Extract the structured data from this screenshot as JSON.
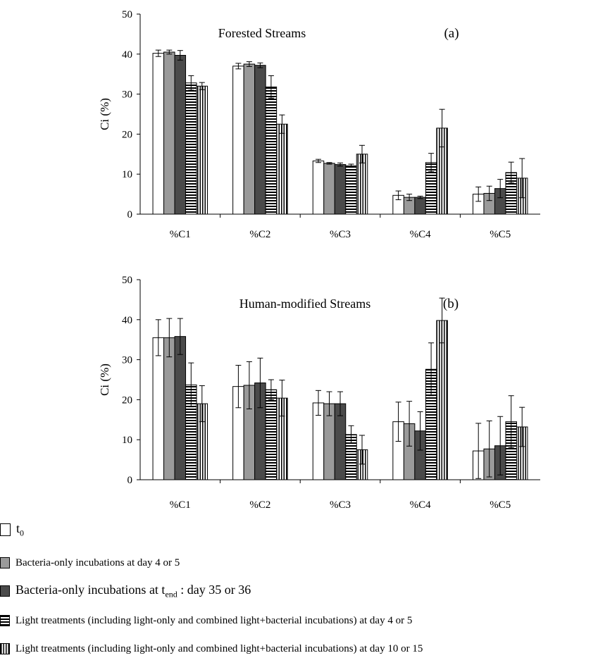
{
  "chart_data": [
    {
      "type": "bar",
      "title": "Forested Streams",
      "panel_label": "(a)",
      "ylabel": "Ci (%)",
      "ylim": [
        0,
        50
      ],
      "yticks": [
        0,
        10,
        20,
        30,
        40,
        50
      ],
      "categories": [
        "%C1",
        "%C2",
        "%C3",
        "%C4",
        "%C5"
      ],
      "series": [
        {
          "key": "t0",
          "values": [
            40.2,
            37.0,
            13.3,
            4.7,
            5.0
          ],
          "errors": [
            0.8,
            0.7,
            0.4,
            1.1,
            1.8
          ]
        },
        {
          "key": "bact_day4_5",
          "values": [
            40.5,
            37.5,
            12.7,
            4.2,
            5.2
          ],
          "errors": [
            0.5,
            0.6,
            0.2,
            0.8,
            1.8
          ]
        },
        {
          "key": "bact_tend",
          "values": [
            39.7,
            37.2,
            12.4,
            4.2,
            6.4
          ],
          "errors": [
            1.2,
            0.6,
            0.4,
            0.3,
            2.3
          ]
        },
        {
          "key": "light_day4_5",
          "values": [
            32.8,
            31.8,
            12.1,
            12.9,
            10.4
          ],
          "errors": [
            1.8,
            2.8,
            0.4,
            2.3,
            2.6
          ]
        },
        {
          "key": "light_day10_15",
          "values": [
            32.0,
            22.5,
            15.0,
            21.5,
            9.0
          ],
          "errors": [
            0.9,
            2.3,
            2.2,
            4.7,
            4.9
          ]
        }
      ]
    },
    {
      "type": "bar",
      "title": "Human-modified Streams",
      "panel_label": "(b)",
      "ylabel": "Ci (%)",
      "ylim": [
        0,
        50
      ],
      "yticks": [
        0,
        10,
        20,
        30,
        40,
        50
      ],
      "categories": [
        "%C1",
        "%C2",
        "%C3",
        "%C4",
        "%C5"
      ],
      "series": [
        {
          "key": "t0",
          "values": [
            35.5,
            23.3,
            19.2,
            14.5,
            7.2
          ],
          "errors": [
            4.5,
            5.3,
            3.1,
            4.9,
            6.9
          ]
        },
        {
          "key": "bact_day4_5",
          "values": [
            35.5,
            23.6,
            19.0,
            14.0,
            7.7
          ],
          "errors": [
            4.8,
            5.9,
            3.0,
            5.6,
            7.0
          ]
        },
        {
          "key": "bact_tend",
          "values": [
            35.8,
            24.2,
            19.0,
            12.2,
            8.5
          ],
          "errors": [
            4.5,
            6.2,
            3.0,
            4.8,
            7.3
          ]
        },
        {
          "key": "light_day4_5",
          "values": [
            23.7,
            22.5,
            11.3,
            27.6,
            14.5
          ],
          "errors": [
            5.5,
            2.5,
            2.2,
            6.6,
            6.5
          ]
        },
        {
          "key": "light_day10_15",
          "values": [
            19.0,
            20.4,
            7.5,
            39.8,
            13.2
          ],
          "errors": [
            4.5,
            4.5,
            3.6,
            5.6,
            4.9
          ]
        }
      ]
    }
  ],
  "legend": [
    {
      "key": "t0",
      "text": "t",
      "sub": "0",
      "after": ""
    },
    {
      "key": "bact_day4_5",
      "text": "Bacteria-only incubations at day 4 or 5",
      "sub": "",
      "after": ""
    },
    {
      "key": "bact_tend",
      "text": "Bacteria-only incubations at t",
      "sub": "end",
      "after": " : day 35 or 36"
    },
    {
      "key": "light_day4_5",
      "text": "Light treatments (including light-only and combined light+bacterial incubations)  at day 4 or 5",
      "sub": "",
      "after": ""
    },
    {
      "key": "light_day10_15",
      "text": "Light treatments (including light-only and combined light+bacterial incubations)  at day 10 or 15",
      "sub": "",
      "after": ""
    }
  ],
  "colors": {
    "t0": "#ffffff",
    "bact_day4_5": "#9a9a9a",
    "bact_tend": "#4a4a4a",
    "light_day4_5": "hstripe",
    "light_day10_15": "vstripe"
  }
}
